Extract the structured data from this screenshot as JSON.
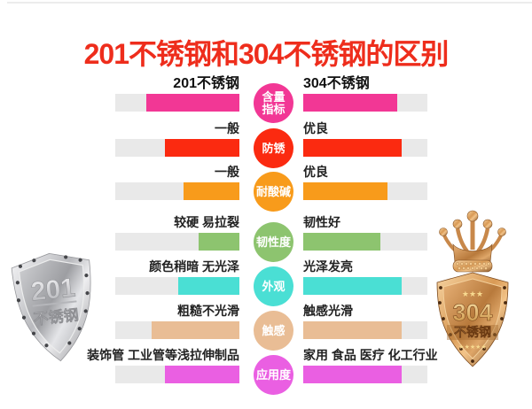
{
  "title": "201不锈钢和304不锈钢的区别",
  "colors": {
    "title": "#EE2D1C",
    "track": "#E9E9E9",
    "top_rule": "#ECECEC"
  },
  "rows": [
    {
      "category": "含量指标",
      "circle_lines": [
        "含量",
        "指标"
      ],
      "color": "#F23795",
      "left_label": "201不锈钢",
      "right_label": "304不锈钢",
      "header": true,
      "left_fill": 0.75,
      "right_fill": 0.76
    },
    {
      "category": "防锈",
      "circle_lines": [
        "防锈"
      ],
      "color": "#FB2A10",
      "left_label": "一般",
      "right_label": "优良",
      "header": false,
      "left_fill": 0.6,
      "right_fill": 0.79
    },
    {
      "category": "耐酸碱",
      "circle_lines": [
        "耐酸碱"
      ],
      "color": "#F89B1B",
      "left_label": "一般",
      "right_label": "优良",
      "header": false,
      "left_fill": 0.45,
      "right_fill": 0.68
    },
    {
      "category": "韧性度",
      "circle_lines": [
        "韧性度"
      ],
      "color": "#8DC46F",
      "left_label": "较硬 易拉裂",
      "right_label": "韧性好",
      "header": false,
      "left_fill": 0.33,
      "right_fill": 0.62
    },
    {
      "category": "外观",
      "circle_lines": [
        "外观"
      ],
      "color": "#4ADFD4",
      "left_label": "颜色稍暗 无光泽",
      "right_label": "光泽发亮",
      "header": false,
      "left_fill": 0.49,
      "right_fill": 0.79
    },
    {
      "category": "触感",
      "circle_lines": [
        "触感"
      ],
      "color": "#E9BD95",
      "left_label": "粗糙不光滑",
      "right_label": "触感光滑",
      "header": false,
      "left_fill": 0.71,
      "right_fill": 0.79
    },
    {
      "category": "应用度",
      "circle_lines": [
        "应用度"
      ],
      "color": "#EA5FE2",
      "left_label": "装饰管 工业管等浅拉伸制品",
      "right_label": "家用 食品 医疗 化工行业",
      "header": false,
      "left_fill": 0.6,
      "right_fill": 0.79
    }
  ],
  "badges": {
    "left": {
      "number": "201",
      "name": "不锈钢"
    },
    "right": {
      "number": "304",
      "name": "不锈钢",
      "stars_top": "★★★",
      "stars_bottom": "★★★★★"
    }
  }
}
